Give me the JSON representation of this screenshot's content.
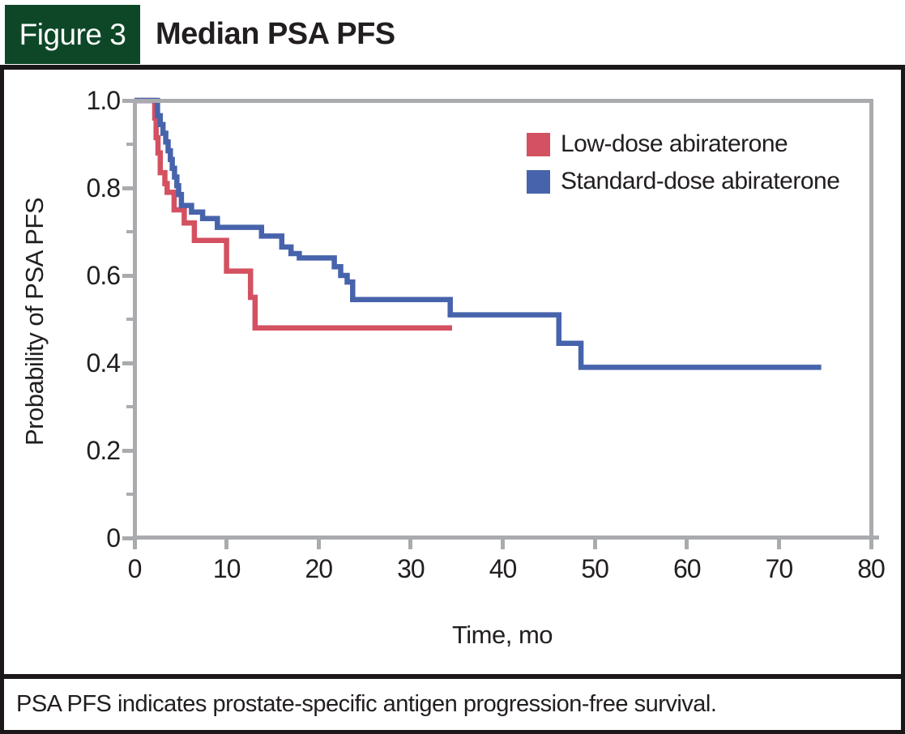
{
  "figure": {
    "label": "Figure 3",
    "title": "Median PSA PFS"
  },
  "footnote": "PSA PFS indicates prostate-specific antigen progression-free survival.",
  "colors": {
    "header_green": "#0E4728",
    "rule_black": "#1C1819",
    "axis_gray": "#A9ABAE",
    "text_black": "#221E1F",
    "low_dose_red": "#D35160",
    "standard_dose_blue": "#4763AB"
  },
  "chart_data": {
    "type": "line",
    "subtype": "kaplan-meier-step",
    "title": "Median PSA PFS",
    "xlabel": "Time, mo",
    "ylabel": "Probability of PSA PFS",
    "xlim": [
      0,
      80
    ],
    "ylim": [
      0,
      1.0
    ],
    "x_ticks": [
      0,
      10,
      20,
      30,
      40,
      50,
      60,
      70,
      80
    ],
    "y_ticks": [
      {
        "label": "1.0",
        "value": 1.0
      },
      {
        "label": "0.8",
        "value": 0.8
      },
      {
        "label": "0.6",
        "value": 0.6
      },
      {
        "label": "0.4",
        "value": 0.4
      },
      {
        "label": "0.2",
        "value": 0.2
      },
      {
        "label": "0",
        "value": 0.0
      }
    ],
    "y_minor_ticks": [
      0.9,
      0.7,
      0.5,
      0.3,
      0.1
    ],
    "grid": false,
    "legend_position": "top-right-inside",
    "series": [
      {
        "name": "Low-dose abiraterone",
        "color": "#D35160",
        "points_t_prob": [
          [
            0,
            1.0
          ],
          [
            2.2,
            0.96
          ],
          [
            2.35,
            0.915
          ],
          [
            2.55,
            0.88
          ],
          [
            2.8,
            0.835
          ],
          [
            3.3,
            0.81
          ],
          [
            3.55,
            0.79
          ],
          [
            4.3,
            0.75
          ],
          [
            5.4,
            0.72
          ],
          [
            6.5,
            0.68
          ],
          [
            10.0,
            0.61
          ],
          [
            12.6,
            0.55
          ],
          [
            13.1,
            0.48
          ],
          [
            34.5,
            0.48
          ]
        ]
      },
      {
        "name": "Standard-dose abiraterone",
        "color": "#4763AB",
        "points_t_prob": [
          [
            0,
            1.0
          ],
          [
            2.5,
            0.965
          ],
          [
            2.8,
            0.945
          ],
          [
            3.1,
            0.925
          ],
          [
            3.4,
            0.905
          ],
          [
            3.65,
            0.885
          ],
          [
            3.9,
            0.865
          ],
          [
            4.1,
            0.845
          ],
          [
            4.35,
            0.825
          ],
          [
            4.6,
            0.805
          ],
          [
            4.8,
            0.785
          ],
          [
            5.1,
            0.76
          ],
          [
            6.2,
            0.745
          ],
          [
            7.4,
            0.73
          ],
          [
            9.0,
            0.71
          ],
          [
            13.8,
            0.69
          ],
          [
            16.0,
            0.665
          ],
          [
            17.0,
            0.65
          ],
          [
            17.9,
            0.64
          ],
          [
            21.7,
            0.62
          ],
          [
            22.4,
            0.6
          ],
          [
            23.1,
            0.585
          ],
          [
            23.7,
            0.545
          ],
          [
            34.3,
            0.51
          ],
          [
            46.1,
            0.445
          ],
          [
            48.5,
            0.39
          ],
          [
            74.6,
            0.39
          ]
        ]
      }
    ]
  }
}
